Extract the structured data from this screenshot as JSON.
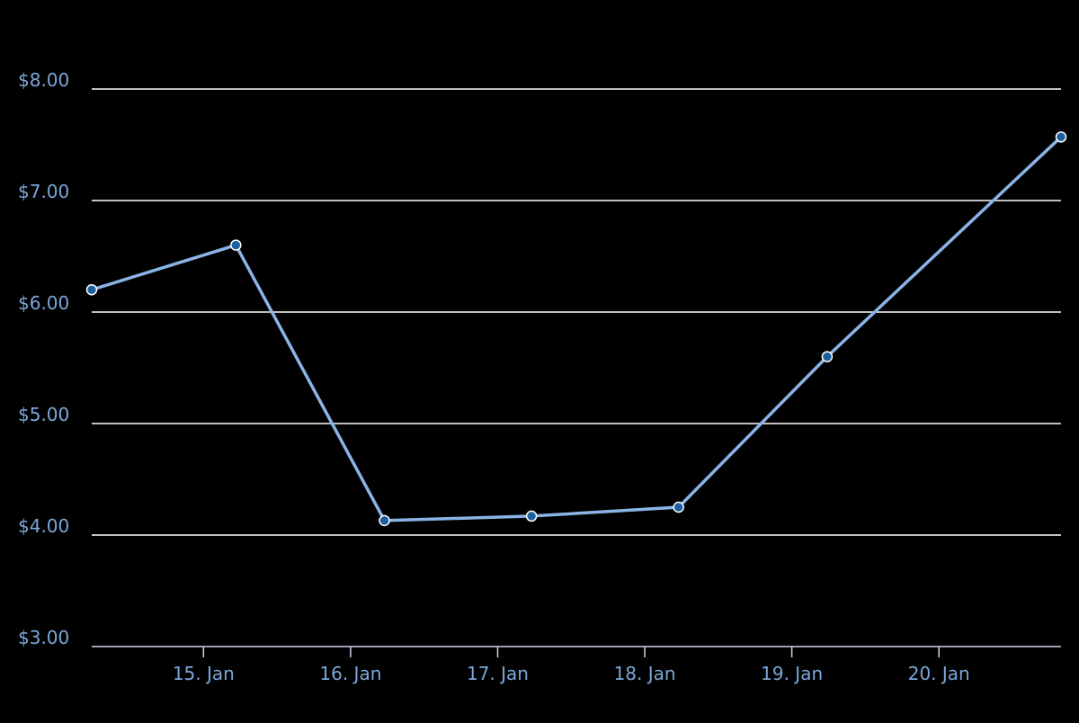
{
  "chart_data": {
    "type": "line",
    "x": [
      14.24,
      15.22,
      16.23,
      17.23,
      18.23,
      19.24,
      20.83
    ],
    "series": [
      {
        "color": "#8ab4e6",
        "values": [
          6.2,
          6.6,
          4.13,
          4.17,
          4.25,
          5.6,
          7.57
        ]
      }
    ],
    "xlim": [
      14.24,
      20.83
    ],
    "xticks": [
      {
        "value": 15,
        "label": "15. Jan"
      },
      {
        "value": 16,
        "label": "16. Jan"
      },
      {
        "value": 17,
        "label": "17. Jan"
      },
      {
        "value": 18,
        "label": "18. Jan"
      },
      {
        "value": 19,
        "label": "19. Jan"
      },
      {
        "value": 20,
        "label": "20. Jan"
      }
    ],
    "ylim": [
      3,
      8
    ],
    "yticks": [
      {
        "value": 3,
        "label": "$3.00"
      },
      {
        "value": 4,
        "label": "$4.00"
      },
      {
        "value": 5,
        "label": "$5.00"
      },
      {
        "value": 6,
        "label": "$6.00"
      },
      {
        "value": 7,
        "label": "$7.00"
      },
      {
        "value": 8,
        "label": "$8.00"
      }
    ],
    "grid": true
  }
}
